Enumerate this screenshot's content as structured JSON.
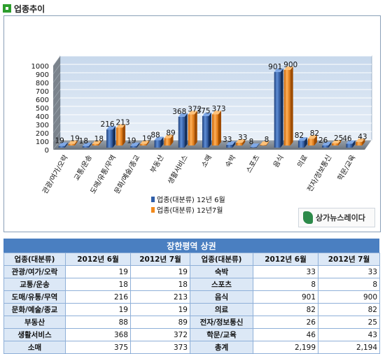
{
  "section": {
    "title": "업종추이"
  },
  "chart_data": {
    "type": "bar",
    "categories": [
      "관광/여가/오락",
      "교통/운송",
      "도매/유통/무역",
      "문화/예술/종교",
      "부동산",
      "생활서비스",
      "소매",
      "숙박",
      "스포츠",
      "음식",
      "의료",
      "전자/정보통신",
      "학문/교육"
    ],
    "series": [
      {
        "name": "업종(대분류) 12년 6월",
        "values": [
          19,
          18,
          216,
          19,
          88,
          368,
          375,
          33,
          8,
          901,
          82,
          26,
          46
        ],
        "color": "#2f5ea8"
      },
      {
        "name": "업종(대분류) 12년7월",
        "values": [
          19,
          18,
          213,
          19,
          89,
          372,
          373,
          33,
          8,
          900,
          82,
          25,
          43
        ],
        "color": "#f28a1c"
      }
    ],
    "yticks": [
      "0",
      "100",
      "200",
      "300",
      "400",
      "500",
      "600",
      "700",
      "800",
      "900",
      "1000"
    ],
    "ylim": [
      0,
      1000
    ],
    "grid": true,
    "legend": "bottom-center"
  },
  "watermark": {
    "text": "상가뉴스레이다"
  },
  "table": {
    "title": "장한평역 상권",
    "headers": [
      "업종(대분류)",
      "2012년 6월",
      "2012년 7월",
      "업종(대분류)",
      "2012년 6월",
      "2012년 7월"
    ],
    "rows": [
      [
        "관광/여가/오락",
        "19",
        "19",
        "숙박",
        "33",
        "33"
      ],
      [
        "교통/운송",
        "18",
        "18",
        "스포츠",
        "8",
        "8"
      ],
      [
        "도매/유통/무역",
        "216",
        "213",
        "음식",
        "901",
        "900"
      ],
      [
        "문화/예술/종교",
        "19",
        "19",
        "의료",
        "82",
        "82"
      ],
      [
        "부동산",
        "88",
        "89",
        "전자/정보통신",
        "26",
        "25"
      ],
      [
        "생활서비스",
        "368",
        "372",
        "학문/교육",
        "46",
        "43"
      ],
      [
        "소매",
        "375",
        "373",
        "총계",
        "2,199",
        "2,194"
      ]
    ]
  }
}
